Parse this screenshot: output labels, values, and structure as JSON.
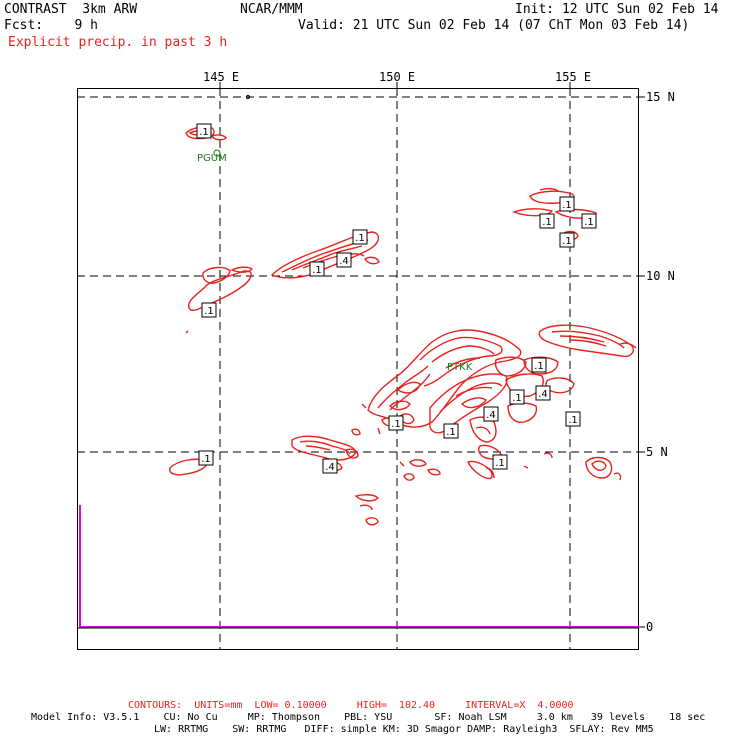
{
  "header": {
    "model_title": "CONTRAST  3km ARW",
    "center": "NCAR/MMM",
    "init": "Init: 12 UTC Sun 02 Feb 14",
    "fcst": "Fcst:    9 h",
    "valid": "Valid: 21 UTC Sun 02 Feb 14 (07 ChT Mon 03 Feb 14)",
    "field_title": "Explicit precip. in past 3 h"
  },
  "axes": {
    "lon_labels": [
      "145 E",
      "150 E",
      "155 E"
    ],
    "lat_labels": [
      "15 N",
      "10 N",
      "5 N"
    ],
    "side_value": "0"
  },
  "stations": [
    "PGUM",
    "PTKK"
  ],
  "contour_labels": [
    ".1",
    ".1",
    ".1",
    ".4",
    ".1",
    ".1",
    ".1",
    ".1",
    ".1",
    ".1",
    ".4",
    ".1",
    ".1",
    ".4",
    ".1",
    ".1",
    ".1",
    ".4"
  ],
  "colors": {
    "contour": "#e8231e",
    "station": "#1a7a1a",
    "side_bar": "#e000e0"
  },
  "footer": {
    "contours": "CONTOURS:  UNITS=mm  LOW= 0.10000     HIGH=  102.40     INTERVAL=X  4.0000",
    "model_info_1": "Model Info: V3.5.1    CU: No Cu     MP: Thompson    PBL: YSU       SF: Noah LSM     3.0 km   39 levels    18 sec",
    "model_info_2": "LW: RRTMG    SW: RRTMG   DIFF: simple KM: 3D Smagor DAMP: Rayleigh3  SFLAY: Rev MM5"
  }
}
